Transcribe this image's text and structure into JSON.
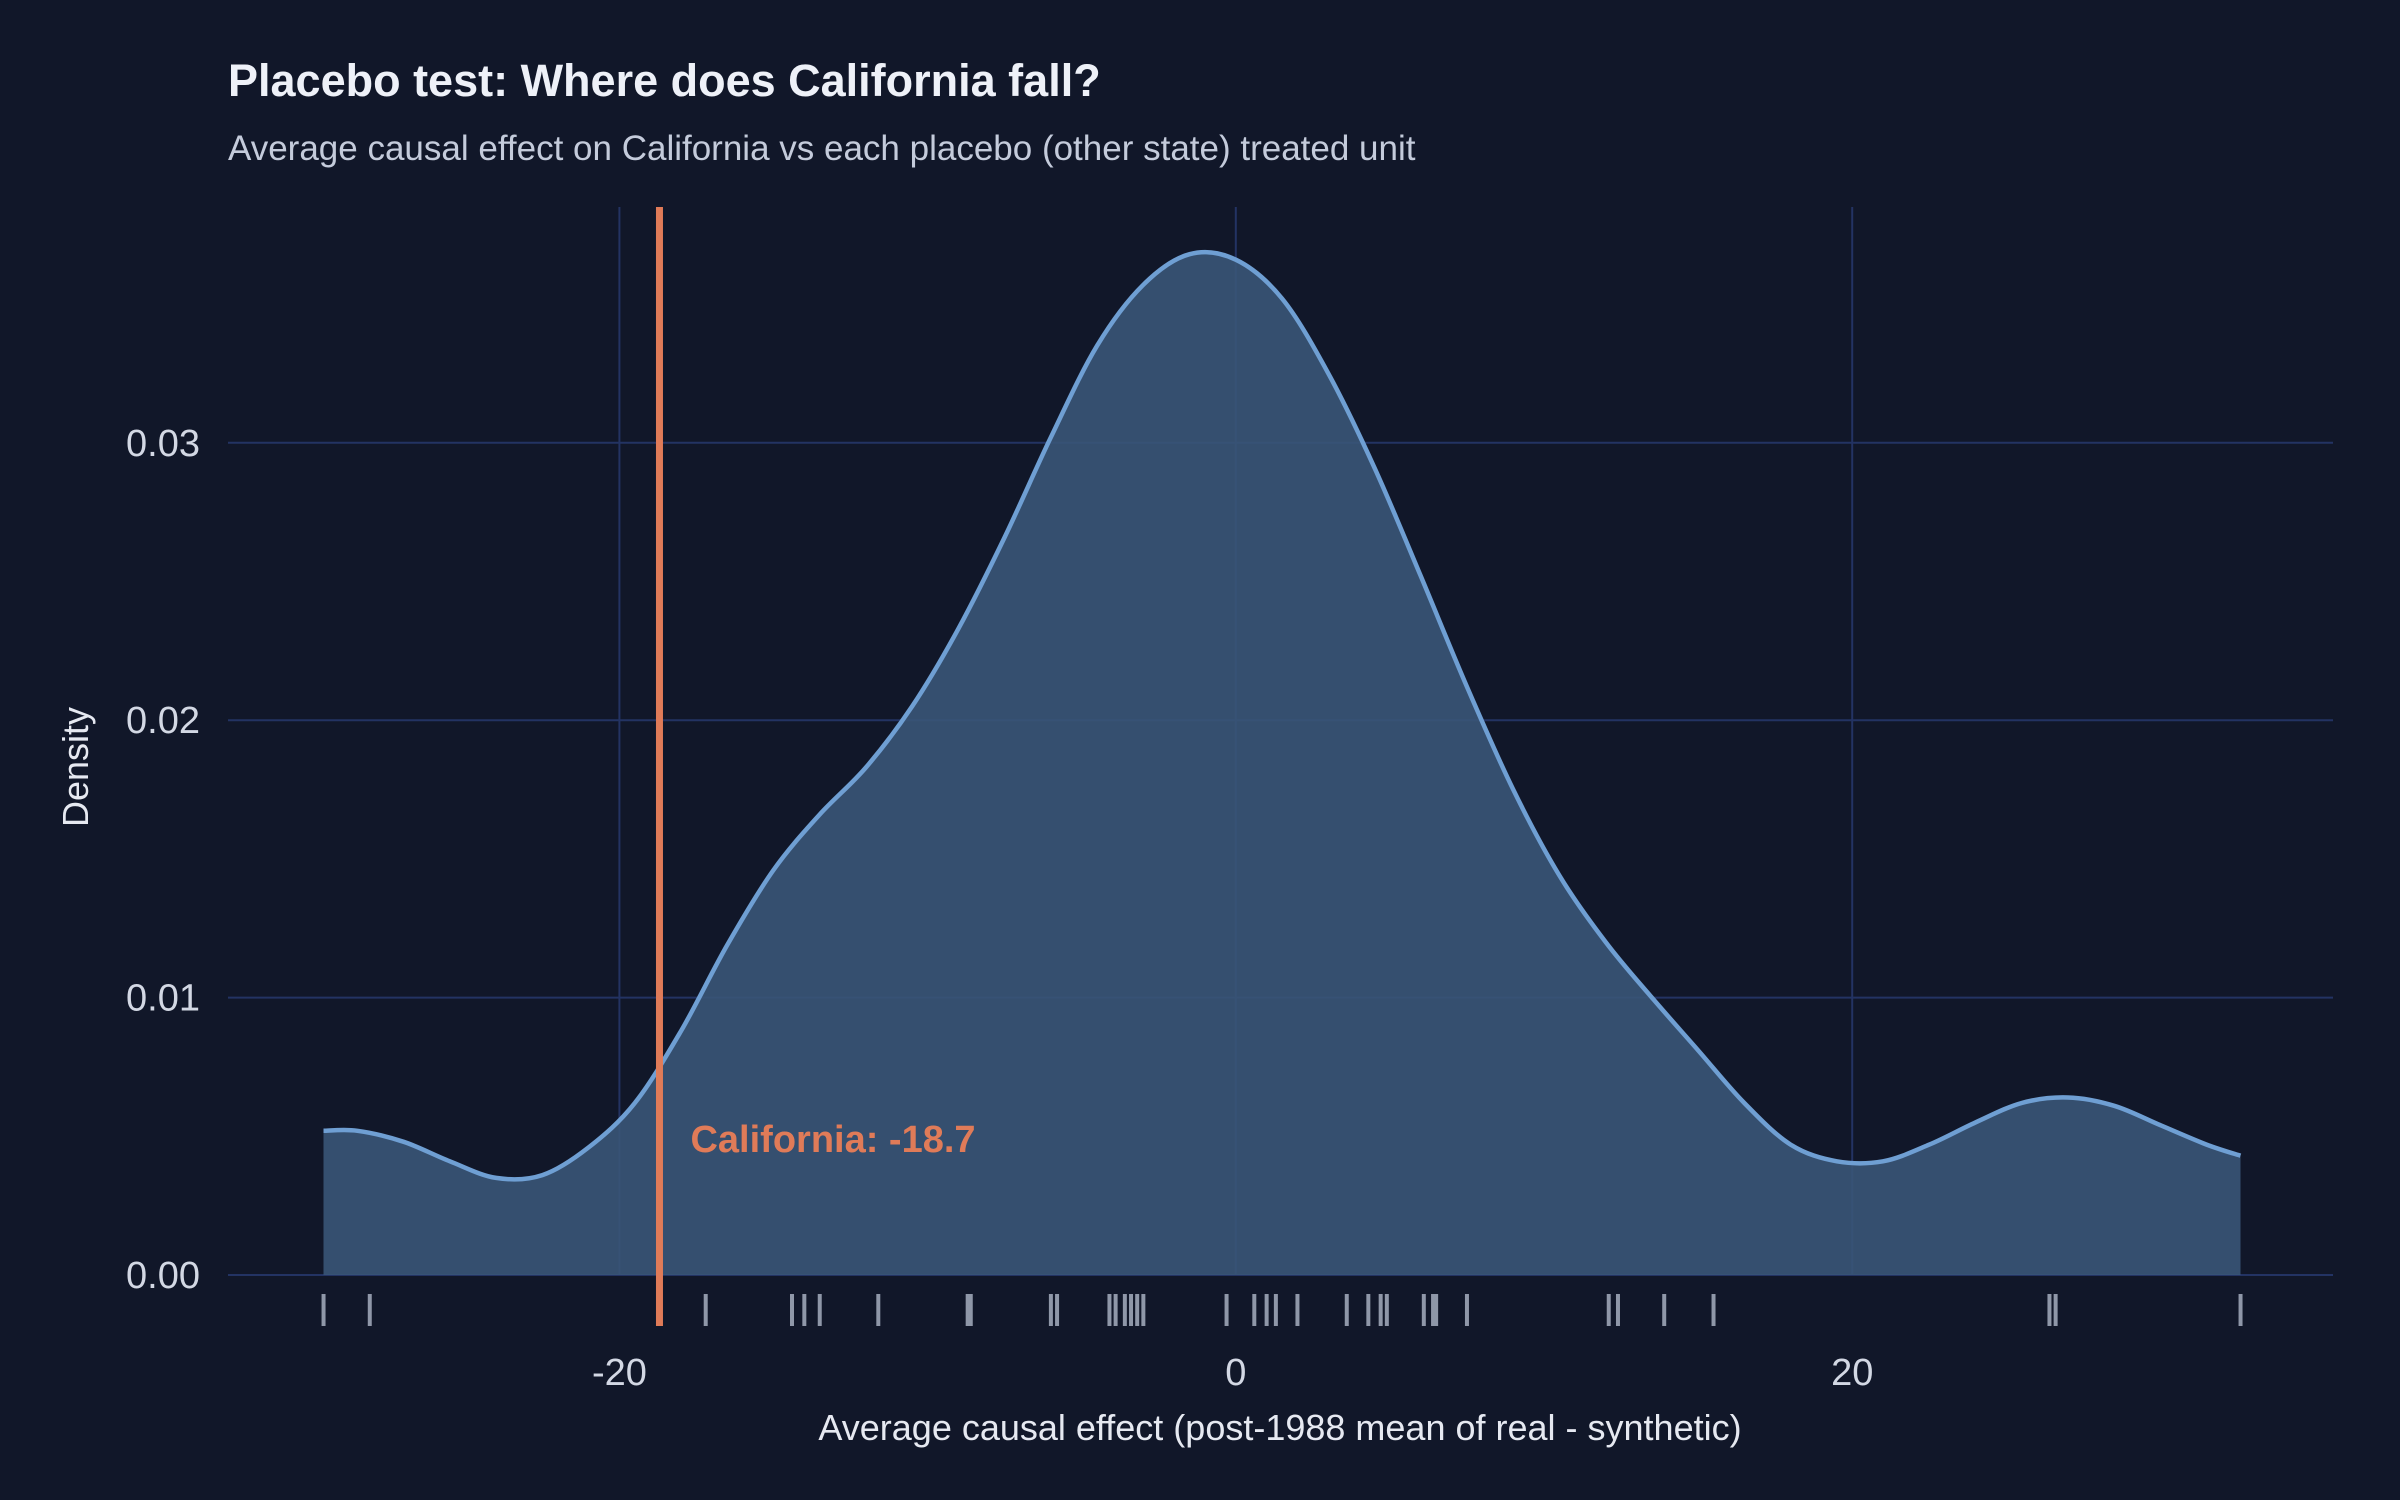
{
  "colors": {
    "background": "#111729",
    "grid": "#233363",
    "density_fill": "#3a5577",
    "density_line": "#6f9fd3",
    "rug": "#8f97a8",
    "reference": "#e07b58"
  },
  "chart_data": {
    "type": "area",
    "title": "Placebo test: Where does California fall?",
    "subtitle": "Average causal effect on California vs each placebo (other state) treated unit",
    "xlabel": "Average causal effect (post-1988 mean of real - synthetic)",
    "ylabel": "Density",
    "xlim": [
      -32.7,
      35.6
    ],
    "ylim": [
      0,
      0.0385
    ],
    "x_ticks": [
      -20,
      0,
      20
    ],
    "x_tick_labels": [
      "-20",
      "0",
      "20"
    ],
    "y_ticks": [
      0,
      0.01,
      0.02,
      0.03
    ],
    "y_tick_labels": [
      "0.00",
      "0.01",
      "0.02",
      "0.03"
    ],
    "grid": true,
    "legend": "none",
    "density_curve": {
      "x": [
        -29.6,
        -28.5,
        -27.0,
        -25.5,
        -24.0,
        -22.5,
        -21.0,
        -19.5,
        -18.0,
        -16.5,
        -15.0,
        -13.5,
        -12.0,
        -10.5,
        -9.0,
        -7.5,
        -6.0,
        -4.5,
        -3.0,
        -1.5,
        0.0,
        1.5,
        3.0,
        4.5,
        6.0,
        7.5,
        9.0,
        10.5,
        12.0,
        13.5,
        15.0,
        16.5,
        18.0,
        19.5,
        21.0,
        22.5,
        24.0,
        25.5,
        27.0,
        28.5,
        30.0,
        31.5,
        32.6
      ],
      "y": [
        0.0052,
        0.0052,
        0.0048,
        0.0041,
        0.0035,
        0.0036,
        0.0046,
        0.0062,
        0.0088,
        0.0119,
        0.0146,
        0.0166,
        0.0183,
        0.0205,
        0.0233,
        0.0266,
        0.0302,
        0.0335,
        0.0357,
        0.0368,
        0.0366,
        0.0352,
        0.0325,
        0.0291,
        0.0252,
        0.0212,
        0.0175,
        0.0144,
        0.012,
        0.01,
        0.0081,
        0.0062,
        0.0047,
        0.0041,
        0.0041,
        0.0047,
        0.0055,
        0.0062,
        0.0064,
        0.0061,
        0.0054,
        0.0047,
        0.0043
      ]
    },
    "rug_values": [
      -29.6,
      -28.1,
      -17.2,
      -14.4,
      -14.0,
      -13.5,
      -11.6,
      -8.7,
      -8.6,
      -6.0,
      -5.8,
      -4.1,
      -3.9,
      -3.6,
      -3.4,
      -3.2,
      -3.0,
      -0.3,
      0.6,
      1.0,
      1.3,
      2.0,
      3.6,
      4.3,
      4.7,
      4.9,
      6.1,
      6.4,
      6.5,
      7.5,
      12.1,
      12.4,
      13.9,
      15.5,
      26.4,
      26.6,
      32.6
    ],
    "reference_line": {
      "x": -18.7,
      "label": "California: -18.7"
    }
  }
}
